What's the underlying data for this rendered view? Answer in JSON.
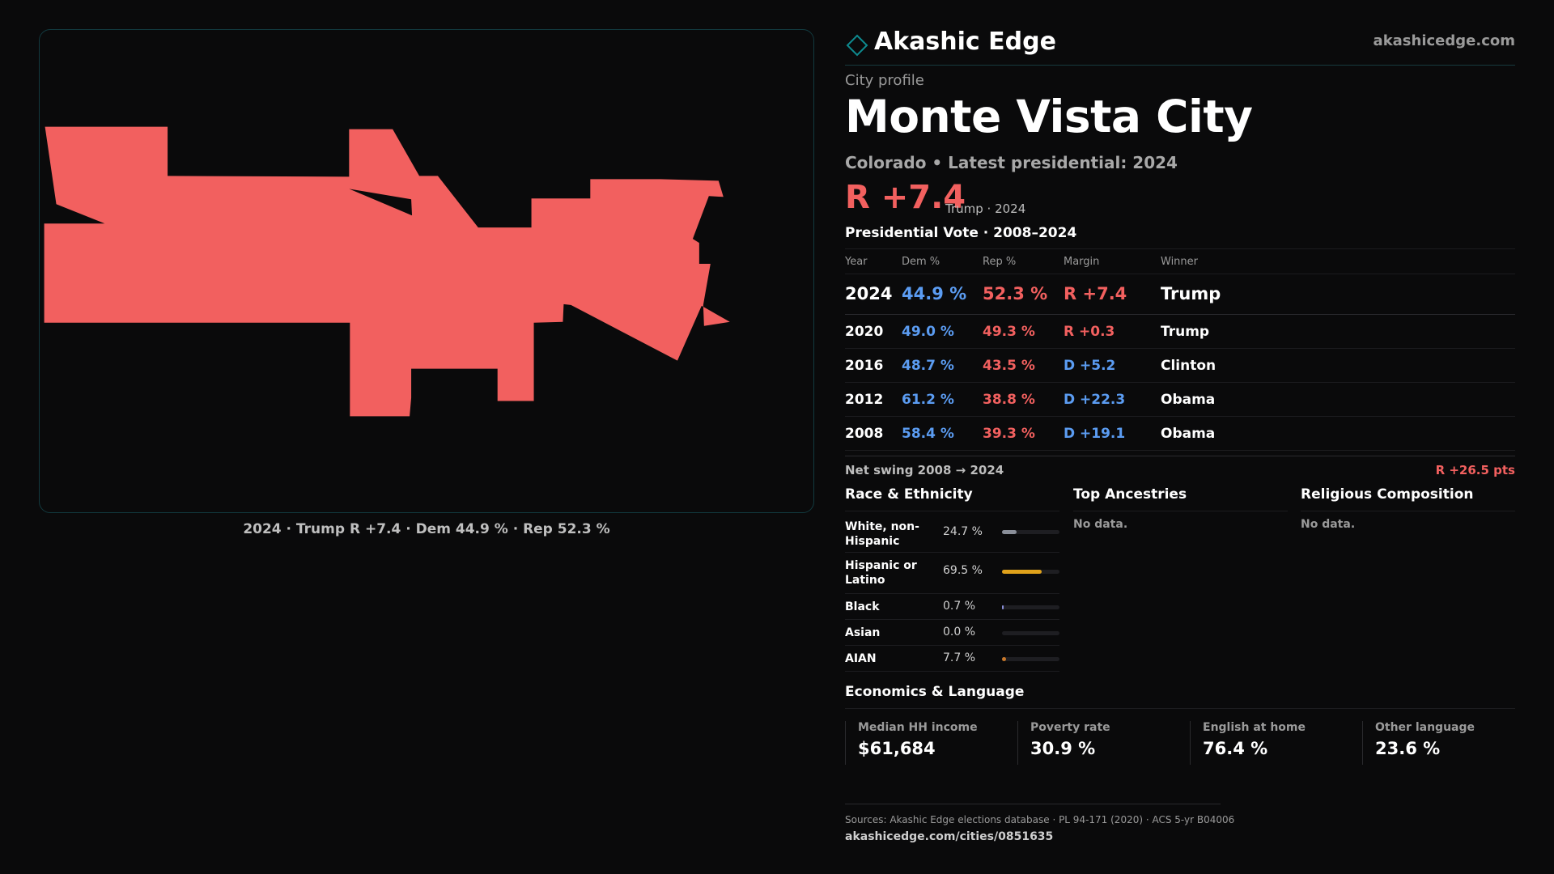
{
  "brand": {
    "name": "Akashic Edge",
    "url": "akashicedge.com",
    "icon": "diamond-icon",
    "accent": "#0e8a8f"
  },
  "city": {
    "eyebrow": "City profile",
    "name": "Monte Vista City",
    "subline": "Colorado • Latest presidential: 2024",
    "headline_margin": "R +7.4",
    "headline_note": "Trump · 2024"
  },
  "map": {
    "fill": "#f2605f",
    "caption": "2024 · Trump  R +7.4 · Dem 44.9 % · Rep 52.3 %"
  },
  "vote": {
    "title": "Presidential Vote · 2008–2024",
    "headers": {
      "year": "Year",
      "dem": "Dem %",
      "rep": "Rep %",
      "margin": "Margin",
      "winner": "Winner"
    },
    "rows": [
      {
        "year": "2024",
        "dem": "44.9 %",
        "rep": "52.3 %",
        "margin": "R +7.4",
        "margin_party": "R",
        "winner": "Trump"
      },
      {
        "year": "2020",
        "dem": "49.0 %",
        "rep": "49.3 %",
        "margin": "R +0.3",
        "margin_party": "R",
        "winner": "Trump"
      },
      {
        "year": "2016",
        "dem": "48.7 %",
        "rep": "43.5 %",
        "margin": "D +5.2",
        "margin_party": "D",
        "winner": "Clinton"
      },
      {
        "year": "2012",
        "dem": "61.2 %",
        "rep": "38.8 %",
        "margin": "D +22.3",
        "margin_party": "D",
        "winner": "Obama"
      },
      {
        "year": "2008",
        "dem": "58.4 %",
        "rep": "39.3 %",
        "margin": "D +19.1",
        "margin_party": "D",
        "winner": "Obama"
      }
    ],
    "swing_label": "Net swing 2008 → 2024",
    "swing_value": "R +26.5 pts"
  },
  "race": {
    "title": "Race & Ethnicity",
    "rows": [
      {
        "label": "White, non-Hispanic",
        "pct": "24.7 %",
        "value": 24.7,
        "color": "#8a8f99"
      },
      {
        "label": "Hispanic or Latino",
        "pct": "69.5 %",
        "value": 69.5,
        "color": "#e0a21b"
      },
      {
        "label": "Black",
        "pct": "0.7 %",
        "value": 0.7,
        "color": "#8a8fd9"
      },
      {
        "label": "Asian",
        "pct": "0.0 %",
        "value": 0.0,
        "color": "#6fb36f"
      },
      {
        "label": "AIAN",
        "pct": "7.7 %",
        "value": 7.7,
        "color": "#c9782a"
      }
    ]
  },
  "ancestry": {
    "title": "Top Ancestries",
    "empty": "No data."
  },
  "religion": {
    "title": "Religious Composition",
    "empty": "No data."
  },
  "economics": {
    "title": "Economics & Language",
    "cards": [
      {
        "label": "Median HH income",
        "value": "$61,684"
      },
      {
        "label": "Poverty rate",
        "value": "30.9 %"
      },
      {
        "label": "English at home",
        "value": "76.4 %"
      },
      {
        "label": "Other language",
        "value": "23.6 %"
      }
    ]
  },
  "footer": {
    "sources": "Sources: Akashic Edge elections database · PL 94-171 (2020) · ACS 5-yr B04006",
    "url": "akashicedge.com/cities/0851635"
  },
  "colors": {
    "dem": "#5b9cf2",
    "rep": "#f2605f"
  }
}
